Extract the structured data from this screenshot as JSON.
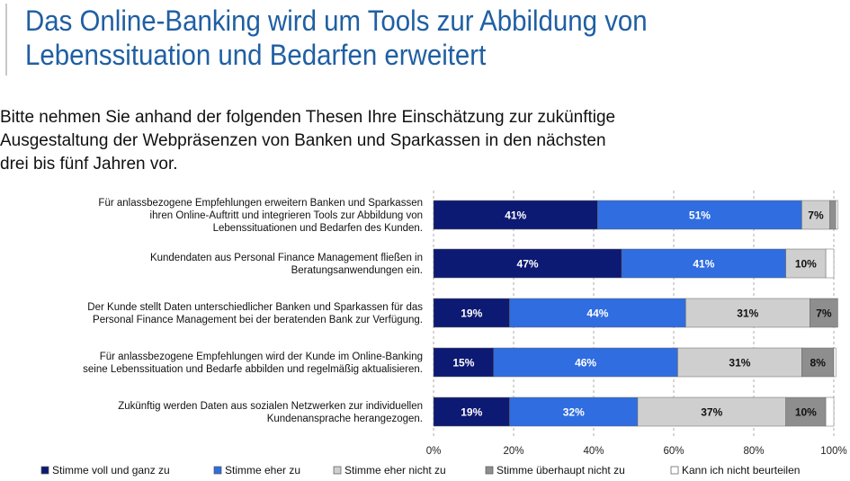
{
  "page": {
    "title_line1": "Das Online-Banking wird um Tools zur Abbildung von",
    "title_line2": "Lebenssituation und Bedarfen erweitert",
    "intro_line1": "Bitte nehmen Sie anhand der folgenden Thesen Ihre Einschätzung zur zukünftige",
    "intro_line2": "Ausgestaltung der Webpräsenzen von Banken und Sparkassen in den nächsten",
    "intro_line3": "drei bis fünf Jahren vor."
  },
  "chart_data": {
    "type": "bar",
    "orientation": "horizontal",
    "stacked": true,
    "xlim": [
      0,
      100
    ],
    "xticks": [
      "0%",
      "20%",
      "40%",
      "60%",
      "80%",
      "100%"
    ],
    "grid": "vertical dashed",
    "legend_position": "bottom",
    "categories": [
      [
        "Für anlassbezogene Empfehlungen erweitern Banken und Sparkassen",
        "ihren Online-Auftritt und integrieren Tools zur Abbildung von",
        "Lebenssituationen und Bedarfen des Kunden."
      ],
      [
        "Kundendaten aus Personal Finance Management fließen in",
        "Beratungsanwendungen ein."
      ],
      [
        "Der Kunde stellt Daten unterschiedlicher Banken und Sparkassen für das",
        "Personal Finance Management bei der beratenden Bank zur Verfügung."
      ],
      [
        "Für anlassbezogene Empfehlungen wird der Kunde im Online-Banking",
        "seine Lebenssituation und Bedarfe abbilden und regelmäßig aktualisieren."
      ],
      [
        "Zukünftig werden Daten aus sozialen Netzwerken zur individuellen",
        "Kundenansprache herangezogen."
      ]
    ],
    "series": [
      {
        "name": "Stimme voll und ganz zu",
        "color": "#0d1a73",
        "label_color": "#ffffff",
        "values": [
          41,
          47,
          19,
          15,
          19
        ],
        "labels": [
          "41%",
          "47%",
          "19%",
          "15%",
          "19%"
        ]
      },
      {
        "name": "Stimme eher zu",
        "color": "#2f6de0",
        "label_color": "#ffffff",
        "values": [
          51,
          41,
          44,
          46,
          32
        ],
        "labels": [
          "51%",
          "41%",
          "44%",
          "46%",
          "32%"
        ]
      },
      {
        "name": "Stimme eher nicht zu",
        "color": "#cfcfcf",
        "label_color": "#111111",
        "values": [
          7,
          10,
          31,
          31,
          37
        ],
        "labels": [
          "7%",
          "10%",
          "31%",
          "31%",
          "37%"
        ]
      },
      {
        "name": "Stimme überhaupt nicht zu",
        "color": "#8e8e8e",
        "label_color": "#111111",
        "values": [
          1.5,
          0,
          7,
          8,
          10
        ],
        "labels": [
          "",
          "",
          "7%",
          "8%",
          "10%"
        ]
      },
      {
        "name": "Kann ich nicht beurteilen",
        "color": "#ffffff",
        "label_color": "#111111",
        "values": [
          0.5,
          2,
          0,
          0.5,
          2
        ],
        "labels": [
          "",
          "",
          "",
          "",
          ""
        ]
      }
    ]
  }
}
